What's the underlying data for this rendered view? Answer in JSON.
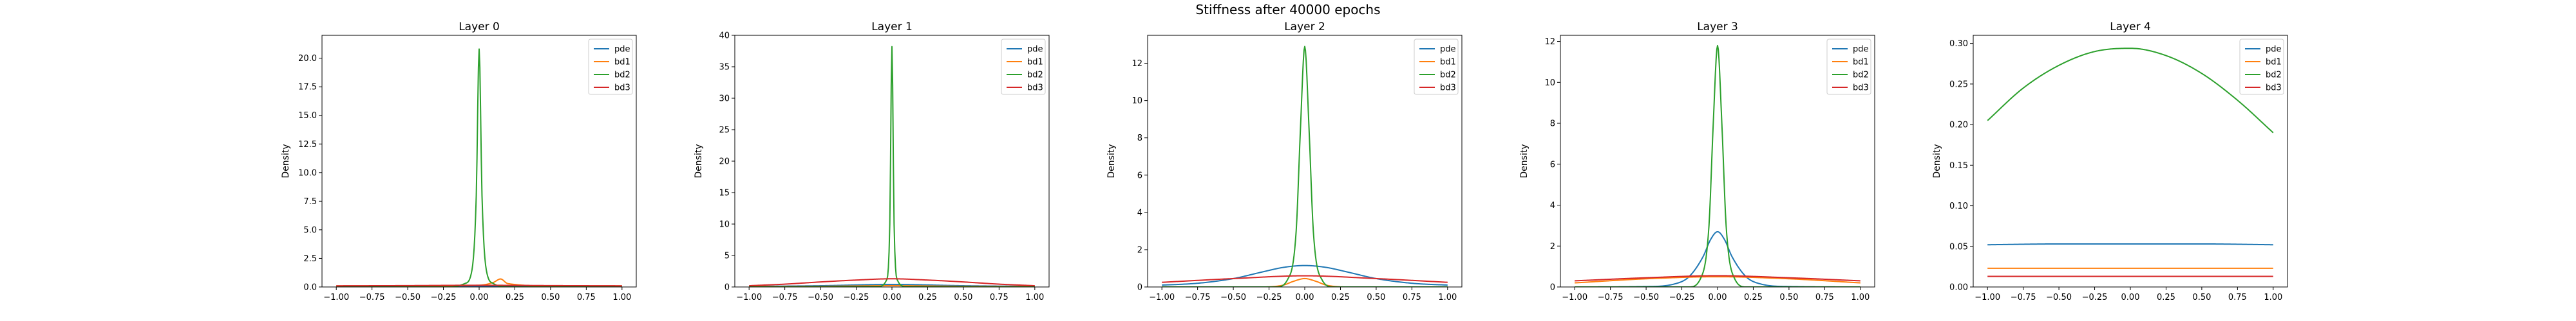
{
  "figure": {
    "title": "Stiffness after 40000 epochs"
  },
  "chart_data": [
    {
      "type": "line",
      "title": "Layer 0",
      "xlabel": "",
      "ylabel": "Density",
      "xlim": [
        -1.1,
        1.1
      ],
      "ylim": [
        0,
        22
      ],
      "xticks": [
        -1.0,
        -0.75,
        -0.5,
        -0.25,
        0.0,
        0.25,
        0.5,
        0.75,
        1.0
      ],
      "xtick_labels": [
        "−1.00",
        "−0.75",
        "−0.50",
        "−0.25",
        "0.00",
        "0.25",
        "0.50",
        "0.75",
        "1.00"
      ],
      "yticks": [
        0,
        2.5,
        5,
        7.5,
        10,
        12.5,
        15,
        17.5,
        20
      ],
      "ytick_labels": [
        "0.0",
        "2.5",
        "5.0",
        "7.5",
        "10.0",
        "12.5",
        "15.0",
        "17.5",
        "20.0"
      ],
      "legend_position": "top-right",
      "series": [
        {
          "name": "pde",
          "color": "#1f77b4",
          "x": [
            -1.0,
            -0.5,
            0.0,
            0.5,
            1.0
          ],
          "y": [
            0.05,
            0.05,
            0.05,
            0.05,
            0.05
          ]
        },
        {
          "name": "bd1",
          "color": "#ff7f0e",
          "x": [
            -1.0,
            -0.5,
            0.0,
            0.1,
            0.15,
            0.2,
            0.5,
            1.0
          ],
          "y": [
            0.1,
            0.1,
            0.15,
            0.4,
            0.7,
            0.3,
            0.1,
            0.1
          ]
        },
        {
          "name": "bd2",
          "color": "#2ca02c",
          "x": [
            -1.0,
            -0.2,
            -0.1,
            -0.05,
            -0.02,
            0.0,
            0.02,
            0.05,
            0.1,
            0.2,
            1.0
          ],
          "y": [
            0.0,
            0.0,
            0.3,
            1.5,
            8.0,
            20.8,
            8.0,
            1.5,
            0.3,
            0.0,
            0.0
          ]
        },
        {
          "name": "bd3",
          "color": "#d62728",
          "x": [
            -1.0,
            -0.5,
            0.0,
            0.5,
            1.0
          ],
          "y": [
            0.1,
            0.12,
            0.15,
            0.12,
            0.1
          ]
        }
      ]
    },
    {
      "type": "line",
      "title": "Layer 1",
      "xlabel": "",
      "ylabel": "Density",
      "xlim": [
        -1.1,
        1.1
      ],
      "ylim": [
        0,
        40
      ],
      "xticks": [
        -1.0,
        -0.75,
        -0.5,
        -0.25,
        0.0,
        0.25,
        0.5,
        0.75,
        1.0
      ],
      "xtick_labels": [
        "−1.00",
        "−0.75",
        "−0.50",
        "−0.25",
        "0.00",
        "0.25",
        "0.50",
        "0.75",
        "1.00"
      ],
      "yticks": [
        0,
        5,
        10,
        15,
        20,
        25,
        30,
        35,
        40
      ],
      "ytick_labels": [
        "0",
        "5",
        "10",
        "15",
        "20",
        "25",
        "30",
        "35",
        "40"
      ],
      "legend_position": "top-right",
      "series": [
        {
          "name": "pde",
          "color": "#1f77b4",
          "x": [
            -1.0,
            -0.5,
            0.0,
            0.5,
            1.0
          ],
          "y": [
            0.1,
            0.2,
            0.4,
            0.2,
            0.1
          ]
        },
        {
          "name": "bd1",
          "color": "#ff7f0e",
          "x": [
            -1.0,
            -0.5,
            0.0,
            0.5,
            1.0
          ],
          "y": [
            0.05,
            0.1,
            0.2,
            0.1,
            0.05
          ]
        },
        {
          "name": "bd2",
          "color": "#2ca02c",
          "x": [
            -1.0,
            -0.1,
            -0.04,
            -0.015,
            0.0,
            0.015,
            0.04,
            0.1,
            1.0
          ],
          "y": [
            0.0,
            0.05,
            1.0,
            10.0,
            38.2,
            10.0,
            1.0,
            0.05,
            0.0
          ]
        },
        {
          "name": "bd3",
          "color": "#d62728",
          "x": [
            -1.0,
            -0.75,
            -0.5,
            -0.25,
            0.0,
            0.25,
            0.5,
            0.75,
            1.0
          ],
          "y": [
            0.2,
            0.45,
            0.8,
            1.1,
            1.3,
            1.1,
            0.8,
            0.45,
            0.2
          ]
        }
      ]
    },
    {
      "type": "line",
      "title": "Layer 2",
      "xlabel": "",
      "ylabel": "Density",
      "xlim": [
        -1.1,
        1.1
      ],
      "ylim": [
        0,
        13.5
      ],
      "xticks": [
        -1.0,
        -0.75,
        -0.5,
        -0.25,
        0.0,
        0.25,
        0.5,
        0.75,
        1.0
      ],
      "xtick_labels": [
        "−1.00",
        "−0.75",
        "−0.50",
        "−0.25",
        "0.00",
        "0.25",
        "0.50",
        "0.75",
        "1.00"
      ],
      "yticks": [
        0,
        2,
        4,
        6,
        8,
        10,
        12
      ],
      "ytick_labels": [
        "0",
        "2",
        "4",
        "6",
        "8",
        "10",
        "12"
      ],
      "legend_position": "top-right",
      "series": [
        {
          "name": "pde",
          "color": "#1f77b4",
          "x": [
            -1.0,
            -0.75,
            -0.5,
            -0.3,
            -0.15,
            0.0,
            0.15,
            0.3,
            0.5,
            0.75,
            1.0
          ],
          "y": [
            0.1,
            0.2,
            0.45,
            0.8,
            1.05,
            1.15,
            1.05,
            0.8,
            0.45,
            0.2,
            0.1
          ]
        },
        {
          "name": "bd1",
          "color": "#ff7f0e",
          "x": [
            -1.0,
            -0.3,
            -0.15,
            -0.08,
            0.0,
            0.08,
            0.15,
            0.3,
            1.0
          ],
          "y": [
            0.0,
            0.0,
            0.1,
            0.3,
            0.45,
            0.3,
            0.1,
            0.0,
            0.0
          ]
        },
        {
          "name": "bd2",
          "color": "#2ca02c",
          "x": [
            -1.0,
            -0.2,
            -0.12,
            -0.06,
            -0.03,
            0.0,
            0.03,
            0.06,
            0.12,
            0.2,
            1.0
          ],
          "y": [
            0.0,
            0.0,
            0.4,
            3.0,
            8.5,
            12.9,
            8.5,
            3.0,
            0.4,
            0.0,
            0.0
          ]
        },
        {
          "name": "bd3",
          "color": "#d62728",
          "x": [
            -1.0,
            -0.5,
            0.0,
            0.5,
            1.0
          ],
          "y": [
            0.25,
            0.45,
            0.6,
            0.45,
            0.25
          ]
        }
      ]
    },
    {
      "type": "line",
      "title": "Layer 3",
      "xlabel": "",
      "ylabel": "Density",
      "xlim": [
        -1.1,
        1.1
      ],
      "ylim": [
        0,
        12.3
      ],
      "xticks": [
        -1.0,
        -0.75,
        -0.5,
        -0.25,
        0.0,
        0.25,
        0.5,
        0.75,
        1.0
      ],
      "xtick_labels": [
        "−1.00",
        "−0.75",
        "−0.50",
        "−0.25",
        "0.00",
        "0.25",
        "0.50",
        "0.75",
        "1.00"
      ],
      "yticks": [
        0,
        2,
        4,
        6,
        8,
        10,
        12
      ],
      "ytick_labels": [
        "0",
        "2",
        "4",
        "6",
        "8",
        "10",
        "12"
      ],
      "legend_position": "top-right",
      "series": [
        {
          "name": "pde",
          "color": "#1f77b4",
          "x": [
            -1.0,
            -0.5,
            -0.3,
            -0.2,
            -0.1,
            -0.05,
            0.0,
            0.05,
            0.1,
            0.2,
            0.3,
            0.5,
            1.0
          ],
          "y": [
            0.0,
            0.02,
            0.15,
            0.5,
            1.5,
            2.3,
            2.7,
            2.3,
            1.5,
            0.5,
            0.15,
            0.02,
            0.0
          ]
        },
        {
          "name": "bd1",
          "color": "#ff7f0e",
          "x": [
            -1.0,
            -0.5,
            0.0,
            0.5,
            1.0
          ],
          "y": [
            0.2,
            0.4,
            0.5,
            0.4,
            0.2
          ]
        },
        {
          "name": "bd2",
          "color": "#2ca02c",
          "x": [
            -1.0,
            -0.2,
            -0.12,
            -0.06,
            -0.03,
            0.0,
            0.03,
            0.06,
            0.12,
            0.2,
            1.0
          ],
          "y": [
            0.0,
            0.0,
            0.4,
            3.0,
            8.0,
            11.8,
            8.0,
            3.0,
            0.4,
            0.0,
            0.0
          ]
        },
        {
          "name": "bd3",
          "color": "#d62728",
          "x": [
            -1.0,
            -0.5,
            0.0,
            0.5,
            1.0
          ],
          "y": [
            0.3,
            0.45,
            0.55,
            0.45,
            0.3
          ]
        }
      ]
    },
    {
      "type": "line",
      "title": "Layer 4",
      "xlabel": "",
      "ylabel": "Density",
      "xlim": [
        -1.1,
        1.1
      ],
      "ylim": [
        0,
        0.31
      ],
      "xticks": [
        -1.0,
        -0.75,
        -0.5,
        -0.25,
        0.0,
        0.25,
        0.5,
        0.75,
        1.0
      ],
      "xtick_labels": [
        "−1.00",
        "−0.75",
        "−0.50",
        "−0.25",
        "0.00",
        "0.25",
        "0.50",
        "0.75",
        "1.00"
      ],
      "yticks": [
        0,
        0.05,
        0.1,
        0.15,
        0.2,
        0.25,
        0.3
      ],
      "ytick_labels": [
        "0.00",
        "0.05",
        "0.10",
        "0.15",
        "0.20",
        "0.25",
        "0.30"
      ],
      "legend_position": "top-right",
      "series": [
        {
          "name": "pde",
          "color": "#1f77b4",
          "x": [
            -1.0,
            -0.5,
            0.0,
            0.5,
            1.0
          ],
          "y": [
            0.052,
            0.053,
            0.053,
            0.053,
            0.052
          ]
        },
        {
          "name": "bd1",
          "color": "#ff7f0e",
          "x": [
            -1.0,
            0.0,
            1.0
          ],
          "y": [
            0.023,
            0.023,
            0.023
          ]
        },
        {
          "name": "bd2",
          "color": "#2ca02c",
          "x": [
            -1.0,
            -0.75,
            -0.5,
            -0.25,
            0.0,
            0.25,
            0.5,
            0.75,
            1.0
          ],
          "y": [
            0.205,
            0.245,
            0.273,
            0.29,
            0.294,
            0.285,
            0.263,
            0.23,
            0.19
          ]
        },
        {
          "name": "bd3",
          "color": "#d62728",
          "x": [
            -1.0,
            0.0,
            1.0
          ],
          "y": [
            0.013,
            0.013,
            0.013
          ]
        }
      ]
    }
  ]
}
